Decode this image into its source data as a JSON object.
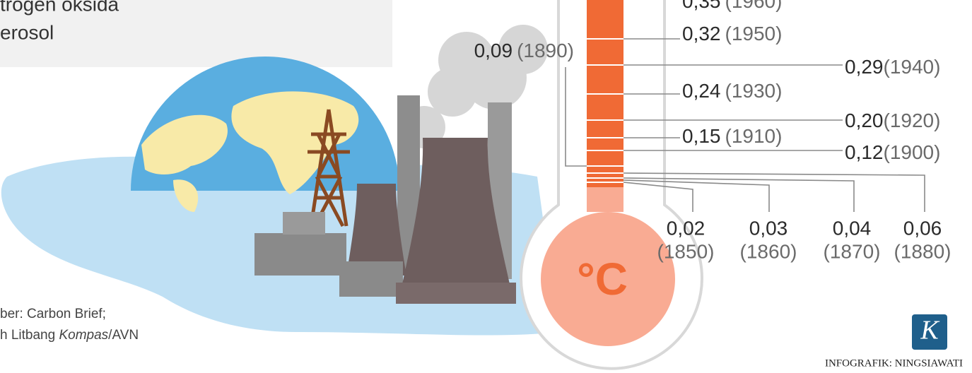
{
  "intro": {
    "lines": [
      "trogen oksida",
      "erosol"
    ]
  },
  "thermometer": {
    "unit": "°C",
    "readings": [
      {
        "value": "0,35",
        "year": "(1960)"
      },
      {
        "value": "0,32",
        "year": "(1950)"
      },
      {
        "value": "0,29",
        "year": "(1940)"
      },
      {
        "value": "0,24",
        "year": "(1930)"
      },
      {
        "value": "0,20",
        "year": "(1920)"
      },
      {
        "value": "0,15",
        "year": "(1910)"
      },
      {
        "value": "0,12",
        "year": "(1900)"
      },
      {
        "value": "0,09",
        "year": "(1890)"
      },
      {
        "value": "0,02",
        "year": "(1850)"
      },
      {
        "value": "0,03",
        "year": "(1860)"
      },
      {
        "value": "0,04",
        "year": "(1870)"
      },
      {
        "value": "0,06",
        "year": "(1880)"
      }
    ]
  },
  "source": {
    "line1": "ber: Carbon Brief;",
    "line2_prefix": "h Litbang ",
    "line2_italic": "Kompas",
    "line2_suffix": "/AVN"
  },
  "credit": {
    "logo": "K",
    "text": "INFOGRAFIK: NINGSIAWATI"
  }
}
